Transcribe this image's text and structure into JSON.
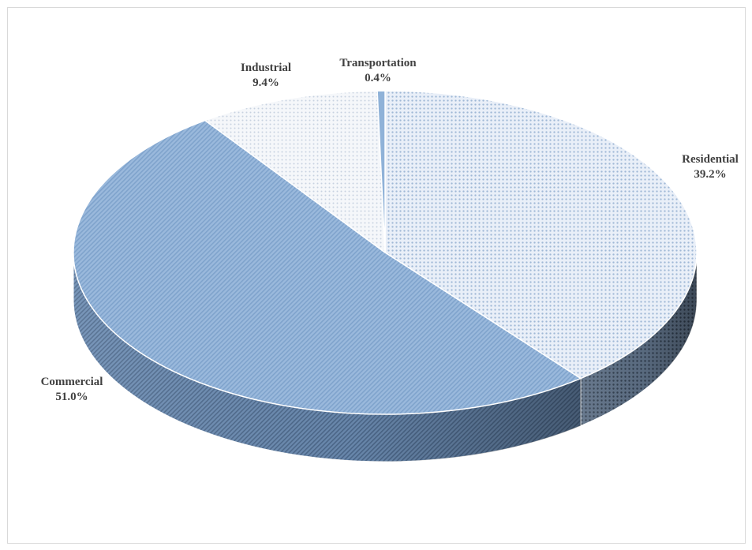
{
  "chart_data": {
    "type": "pie",
    "variant": "3d",
    "title": "",
    "slices": [
      {
        "label": "Residential",
        "value": 39.2,
        "value_label": "39.2%",
        "color": "#dbe6f3",
        "pattern": "dots-light"
      },
      {
        "label": "Commercial",
        "value": 51.0,
        "value_label": "51.0%",
        "color": "#8fb2d8",
        "pattern": "hatch-blue"
      },
      {
        "label": "Industrial",
        "value": 9.4,
        "value_label": "9.4%",
        "color": "#eef1f6",
        "pattern": "dots-faint"
      },
      {
        "label": "Transportation",
        "value": 0.4,
        "value_label": "0.4%",
        "color": "#8fb2d8",
        "pattern": "solid"
      }
    ],
    "start_angle_deg": 0,
    "direction": "clockwise",
    "legend": "none",
    "data_labels": "outside"
  }
}
